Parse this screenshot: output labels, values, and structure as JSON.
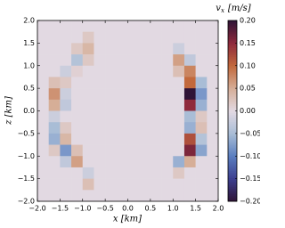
{
  "chart_data": {
    "type": "heatmap",
    "xlabel": "x [km]",
    "ylabel": "z [km]",
    "colorbar_label": {
      "symbol": "v",
      "subscript": "x",
      "unit": "[m/s]"
    },
    "x": [
      -1.875,
      -1.625,
      -1.375,
      -1.125,
      -0.875,
      -0.625,
      -0.375,
      -0.125,
      0.125,
      0.375,
      0.625,
      0.875,
      1.125,
      1.375,
      1.625,
      1.875
    ],
    "y": [
      1.875,
      1.625,
      1.375,
      1.125,
      0.875,
      0.625,
      0.375,
      0.125,
      -0.125,
      -0.375,
      -0.625,
      -0.875,
      -1.125,
      -1.375,
      -1.625,
      -1.875
    ],
    "values": [
      [
        0,
        0,
        0,
        0,
        0,
        0,
        0,
        0,
        0,
        0,
        0,
        0,
        0,
        0,
        0,
        0
      ],
      [
        0,
        0,
        0,
        0,
        0.02,
        0,
        0,
        0,
        0,
        0,
        0,
        0,
        0,
        0,
        0,
        0
      ],
      [
        0,
        0,
        0,
        0.02,
        0.04,
        0,
        0,
        0,
        0,
        0,
        0,
        0,
        -0.02,
        0,
        0,
        0
      ],
      [
        0,
        0,
        0,
        -0.04,
        0.02,
        0,
        0,
        0,
        0,
        0,
        0,
        0,
        0.06,
        -0.03,
        0,
        0
      ],
      [
        0,
        0,
        -0.02,
        0.01,
        0,
        0,
        0,
        0,
        0,
        0,
        0,
        0,
        0.03,
        0.08,
        0,
        0
      ],
      [
        0,
        0.03,
        0.02,
        0,
        0,
        0,
        0,
        0,
        0,
        0,
        0,
        0,
        0,
        0.1,
        -0.05,
        0
      ],
      [
        0,
        0.07,
        -0.02,
        0,
        0,
        0,
        0,
        0,
        0,
        0,
        0,
        0,
        0,
        0.2,
        -0.08,
        0
      ],
      [
        0,
        0.05,
        -0.03,
        0,
        0,
        0,
        0,
        0,
        0,
        0,
        0,
        0,
        0,
        0.15,
        -0.06,
        0
      ],
      [
        0,
        -0.02,
        0,
        0,
        0,
        0,
        0,
        0,
        0,
        0,
        0,
        0,
        0,
        -0.05,
        0.02,
        0
      ],
      [
        0,
        -0.05,
        0.02,
        0,
        0,
        0,
        0,
        0,
        0,
        0,
        0,
        0,
        0,
        -0.06,
        0.03,
        0
      ],
      [
        0,
        -0.06,
        0.04,
        0,
        0,
        0,
        0,
        0,
        0,
        0,
        0,
        0,
        0,
        0.12,
        -0.04,
        0
      ],
      [
        0,
        0.02,
        -0.08,
        0.03,
        0,
        0,
        0,
        0,
        0,
        0,
        0,
        0,
        0,
        0.16,
        -0.07,
        0
      ],
      [
        0,
        0,
        -0.03,
        0.06,
        0,
        0,
        0,
        0,
        0,
        0,
        0,
        0,
        -0.06,
        0.05,
        0,
        0
      ],
      [
        0,
        0,
        0,
        0,
        -0.02,
        0,
        0,
        0,
        0,
        0,
        0,
        0,
        0.02,
        0,
        0,
        0
      ],
      [
        0,
        0,
        0,
        0,
        0.03,
        0,
        0,
        0,
        0,
        0,
        0,
        0,
        0,
        0,
        0,
        0
      ],
      [
        0,
        0,
        0,
        0,
        0,
        0,
        0,
        0,
        0,
        0,
        0,
        0,
        0,
        0,
        0,
        0
      ]
    ],
    "xlim": [
      -2,
      2
    ],
    "ylim": [
      -2,
      2
    ],
    "clim": [
      -0.2,
      0.2
    ],
    "colormap": [
      "#2f1436",
      "#3d3f8f",
      "#5a7ec0",
      "#a9bdd6",
      "#e2d9e2",
      "#d6ae97",
      "#c2693c",
      "#8f2a3c",
      "#2f1436"
    ],
    "xticks": [
      {
        "value": -2,
        "label": "−2.0"
      },
      {
        "value": -1.5,
        "label": "−1.5"
      },
      {
        "value": -1,
        "label": "−1.0"
      },
      {
        "value": -0.5,
        "label": "−0.5"
      },
      {
        "value": 0,
        "label": "0.0"
      },
      {
        "value": 0.5,
        "label": "0.5"
      },
      {
        "value": 1,
        "label": "1.0"
      },
      {
        "value": 1.5,
        "label": "1.5"
      },
      {
        "value": 2,
        "label": "2.0"
      }
    ],
    "yticks": [
      {
        "value": -2,
        "label": "−2.0"
      },
      {
        "value": -1.5,
        "label": "−1.5"
      },
      {
        "value": -1,
        "label": "−1.0"
      },
      {
        "value": -0.5,
        "label": "−0.5"
      },
      {
        "value": 0,
        "label": "0.0"
      },
      {
        "value": 0.5,
        "label": "0.5"
      },
      {
        "value": 1,
        "label": "1.0"
      },
      {
        "value": 1.5,
        "label": "1.5"
      },
      {
        "value": 2,
        "label": "2.0"
      }
    ],
    "cticks": [
      {
        "value": -0.2,
        "label": "−0.20"
      },
      {
        "value": -0.15,
        "label": "−0.15"
      },
      {
        "value": -0.1,
        "label": "−0.10"
      },
      {
        "value": -0.05,
        "label": "−0.05"
      },
      {
        "value": 0,
        "label": "0.00"
      },
      {
        "value": 0.05,
        "label": "0.05"
      },
      {
        "value": 0.1,
        "label": "0.10"
      },
      {
        "value": 0.15,
        "label": "0.15"
      },
      {
        "value": 0.2,
        "label": "0.20"
      }
    ]
  }
}
